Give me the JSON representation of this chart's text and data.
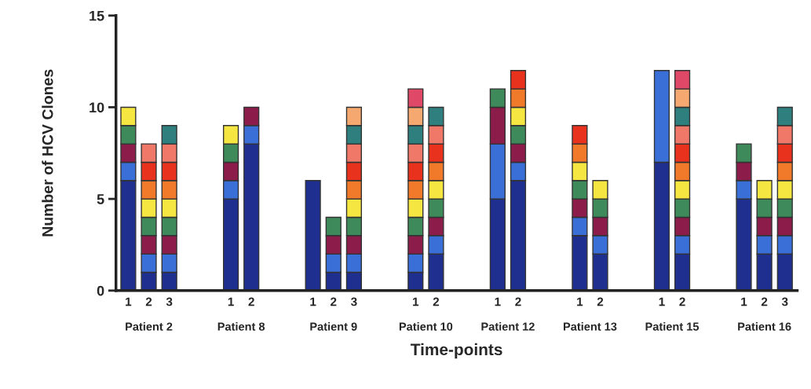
{
  "chart_data": {
    "type": "bar",
    "stacked": true,
    "xlabel": "Time-points",
    "ylabel": "Number of HCV Clones",
    "categories": [
      "1",
      "2",
      "3",
      null,
      null,
      "1",
      "2",
      null,
      null,
      "1",
      "2",
      "3",
      null,
      null,
      "1",
      "2",
      null,
      null,
      "1",
      "2",
      null,
      null,
      "1",
      "2",
      null,
      null,
      "1",
      "2",
      null,
      null,
      "1",
      "2",
      "3"
    ],
    "series": [
      {
        "color": "#1f2f8f",
        "values": [
          6,
          1,
          1,
          null,
          null,
          5,
          8,
          null,
          null,
          6,
          1,
          1,
          null,
          null,
          1,
          2,
          null,
          null,
          5,
          6,
          null,
          null,
          3,
          2,
          null,
          null,
          7,
          2,
          null,
          null,
          5,
          2,
          2
        ]
      },
      {
        "color": "#3a6fd8",
        "values": [
          1,
          1,
          1,
          null,
          null,
          1,
          1,
          null,
          null,
          null,
          1,
          1,
          null,
          null,
          1,
          1,
          null,
          null,
          3,
          1,
          null,
          null,
          1,
          1,
          null,
          null,
          5,
          1,
          null,
          null,
          1,
          1,
          1
        ]
      },
      {
        "color": "#8c1d4a",
        "values": [
          1,
          1,
          1,
          null,
          null,
          1,
          1,
          null,
          null,
          null,
          1,
          1,
          null,
          null,
          1,
          1,
          null,
          null,
          2,
          1,
          null,
          null,
          1,
          1,
          null,
          null,
          null,
          1,
          null,
          null,
          1,
          1,
          1
        ]
      },
      {
        "color": "#3f8a5a",
        "values": [
          1,
          1,
          1,
          null,
          null,
          1,
          null,
          null,
          null,
          null,
          1,
          1,
          null,
          null,
          1,
          1,
          null,
          null,
          1,
          1,
          null,
          null,
          1,
          1,
          null,
          null,
          null,
          1,
          null,
          null,
          1,
          1,
          1
        ]
      },
      {
        "color": "#f5e642",
        "values": [
          1,
          1,
          1,
          null,
          null,
          1,
          null,
          null,
          null,
          null,
          null,
          1,
          null,
          null,
          1,
          1,
          null,
          null,
          null,
          1,
          null,
          null,
          1,
          1,
          null,
          null,
          null,
          1,
          null,
          null,
          null,
          1,
          1
        ]
      },
      {
        "color": "#f07a2a",
        "values": [
          null,
          1,
          1,
          null,
          null,
          null,
          null,
          null,
          null,
          null,
          null,
          1,
          null,
          null,
          1,
          1,
          null,
          null,
          null,
          1,
          null,
          null,
          1,
          null,
          null,
          null,
          null,
          1,
          null,
          null,
          null,
          null,
          1
        ]
      },
      {
        "color": "#e8321e",
        "values": [
          null,
          1,
          1,
          null,
          null,
          null,
          null,
          null,
          null,
          null,
          null,
          1,
          null,
          null,
          1,
          1,
          null,
          null,
          null,
          1,
          null,
          null,
          1,
          null,
          null,
          null,
          null,
          1,
          null,
          null,
          null,
          null,
          1
        ]
      },
      {
        "color": "#f07868",
        "values": [
          null,
          1,
          1,
          null,
          null,
          null,
          null,
          null,
          null,
          null,
          null,
          1,
          null,
          null,
          1,
          1,
          null,
          null,
          null,
          null,
          null,
          null,
          null,
          null,
          null,
          null,
          null,
          1,
          null,
          null,
          null,
          null,
          1
        ]
      },
      {
        "color": "#2f7f7f",
        "values": [
          null,
          null,
          1,
          null,
          null,
          null,
          null,
          null,
          null,
          null,
          null,
          1,
          null,
          null,
          1,
          1,
          null,
          null,
          null,
          null,
          null,
          null,
          null,
          null,
          null,
          null,
          null,
          1,
          null,
          null,
          null,
          null,
          1
        ]
      },
      {
        "color": "#f5a870",
        "values": [
          null,
          null,
          null,
          null,
          null,
          null,
          null,
          null,
          null,
          null,
          null,
          1,
          null,
          null,
          1,
          null,
          null,
          null,
          null,
          null,
          null,
          null,
          null,
          null,
          null,
          null,
          null,
          1,
          null,
          null,
          null,
          null,
          null
        ]
      },
      {
        "color": "#e04868",
        "values": [
          null,
          null,
          null,
          null,
          null,
          null,
          null,
          null,
          null,
          null,
          null,
          null,
          null,
          null,
          1,
          null,
          null,
          null,
          null,
          null,
          null,
          null,
          null,
          null,
          null,
          null,
          null,
          1,
          null,
          null,
          null,
          null,
          null
        ]
      }
    ],
    "ylim": [
      0,
      15
    ],
    "yticks": [
      0,
      5,
      10,
      15
    ],
    "grid": false,
    "legend": false,
    "annotations": [
      "Patient 2",
      "Patient 8",
      "Patient 9",
      "Patient 10",
      "Patient 12",
      "Patient 13",
      "Patient 15",
      "Patient 16"
    ]
  }
}
